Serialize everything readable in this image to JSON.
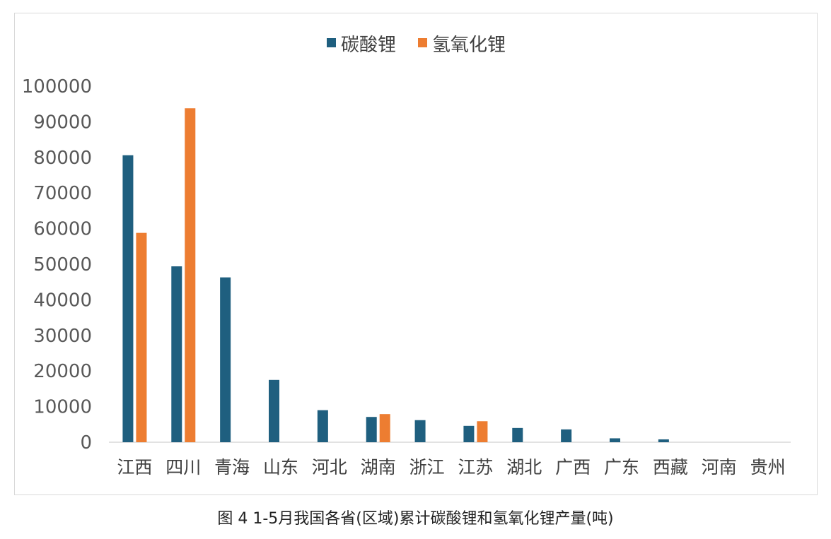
{
  "chart_data": {
    "type": "bar",
    "categories": [
      "江西",
      "四川",
      "青海",
      "山东",
      "河北",
      "湖南",
      "浙江",
      "江苏",
      "湖北",
      "广西",
      "广东",
      "西藏",
      "河南",
      "贵州"
    ],
    "series": [
      {
        "name": "碳酸锂",
        "color": "#1f5f7f",
        "values": [
          80600,
          49400,
          46300,
          17500,
          9000,
          7100,
          6200,
          4600,
          4000,
          3600,
          1100,
          800,
          0,
          0
        ]
      },
      {
        "name": "氢氧化锂",
        "color": "#ed7d31",
        "values": [
          58800,
          93800,
          0,
          0,
          0,
          7900,
          0,
          5900,
          0,
          0,
          0,
          0,
          0,
          0
        ]
      }
    ],
    "ylim": [
      0,
      100000
    ],
    "yticks": [
      "0",
      "10000",
      "20000",
      "30000",
      "40000",
      "50000",
      "60000",
      "70000",
      "80000",
      "90000",
      "100000"
    ],
    "legend_position": "top",
    "grid": false,
    "caption": "图 4 1-5月我国各省(区域)累计碳酸锂和氢氧化锂产量(吨)"
  }
}
